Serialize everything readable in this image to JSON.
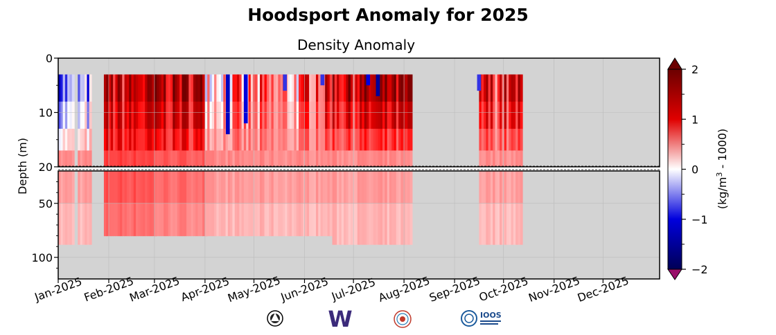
{
  "chart_data": {
    "type": "heatmap",
    "title": "Hoodsport Anomaly for 2025",
    "subtitle": "Density Anomaly",
    "ylabel": "Depth (m)",
    "xlabel": "",
    "x_ticks": [
      "Jan-2025",
      "Feb-2025",
      "Mar-2025",
      "Apr-2025",
      "May-2025",
      "Jun-2025",
      "Jul-2025",
      "Aug-2025",
      "Sep-2025",
      "Oct-2025",
      "Nov-2025",
      "Dec-2025"
    ],
    "y_ticks_upper": [
      0,
      10,
      20
    ],
    "y_ticks_lower": [
      50,
      100
    ],
    "ylim_upper": [
      0,
      20
    ],
    "ylim_lower": [
      20,
      120
    ],
    "y_scale": "split axis: linear 0–20 m on top panel, 20–120 m on lower panel",
    "colorbar": {
      "label": "(kg/m³ - 1000)",
      "label_base": "(kg/m",
      "label_sup": "3",
      "label_tail": " - 1000)",
      "ticks": [
        "2",
        "1",
        "0",
        "−1",
        "−2"
      ],
      "range": [
        -2,
        2
      ],
      "extend": "both",
      "colors": {
        "max_over": "#6b0000",
        "high": "#e00000",
        "mid": "#ffffff",
        "low": "#0000dd",
        "min_under": "#000055",
        "under_tip": "#99106a",
        "over_tip": "#6b0000"
      }
    },
    "grid": true,
    "background_no_data": "#d3d3d3",
    "data_segments": [
      {
        "start": "2025-01-01",
        "end": "2025-01-09",
        "max_depth_m": 88,
        "surface_anomaly": -0.6,
        "deep_anomaly": 0.3
      },
      {
        "start": "2025-01-13",
        "end": "2025-01-19",
        "max_depth_m": 88,
        "surface_anomaly": -0.5,
        "deep_anomaly": 0.3
      },
      {
        "start": "2025-01-29",
        "end": "2025-02-28",
        "max_depth_m": 80,
        "surface_anomaly": 1.2,
        "deep_anomaly": 0.6
      },
      {
        "start": "2025-03-01",
        "end": "2025-03-31",
        "max_depth_m": 80,
        "surface_anomaly": 1.4,
        "deep_anomaly": 0.5
      },
      {
        "start": "2025-04-01",
        "end": "2025-05-31",
        "max_depth_m": 80,
        "surface_anomaly": 0.4,
        "deep_anomaly": 0.3
      },
      {
        "start": "2025-06-01",
        "end": "2025-06-17",
        "max_depth_m": 80,
        "surface_anomaly": 0.9,
        "deep_anomaly": 0.3
      },
      {
        "start": "2025-06-18",
        "end": "2025-08-04",
        "max_depth_m": 88,
        "surface_anomaly": 1.3,
        "deep_anomaly": 0.3
      },
      {
        "start": "2025-09-16",
        "end": "2025-10-11",
        "max_depth_m": 88,
        "surface_anomaly": 1.0,
        "deep_anomaly": 0.3
      }
    ],
    "surface_blue_events": [
      {
        "date": "2025-04-15",
        "depth_m": 14,
        "anomaly": -1.2
      },
      {
        "date": "2025-04-26",
        "depth_m": 12,
        "anomaly": -1.0
      },
      {
        "date": "2025-05-20",
        "depth_m": 6,
        "anomaly": -0.8
      },
      {
        "date": "2025-06-12",
        "depth_m": 5,
        "anomaly": -0.8
      },
      {
        "date": "2025-07-10",
        "depth_m": 5,
        "anomaly": -1.0
      },
      {
        "date": "2025-07-16",
        "depth_m": 7,
        "anomaly": -1.5
      },
      {
        "date": "2025-09-16",
        "depth_m": 6,
        "anomaly": -0.8
      }
    ],
    "logos": [
      "badge-logo",
      "uw-w-logo",
      "nanoos-logo",
      "ioos-logo"
    ],
    "logo_texts": {
      "uw": "W",
      "ioos": "IOOS"
    }
  }
}
